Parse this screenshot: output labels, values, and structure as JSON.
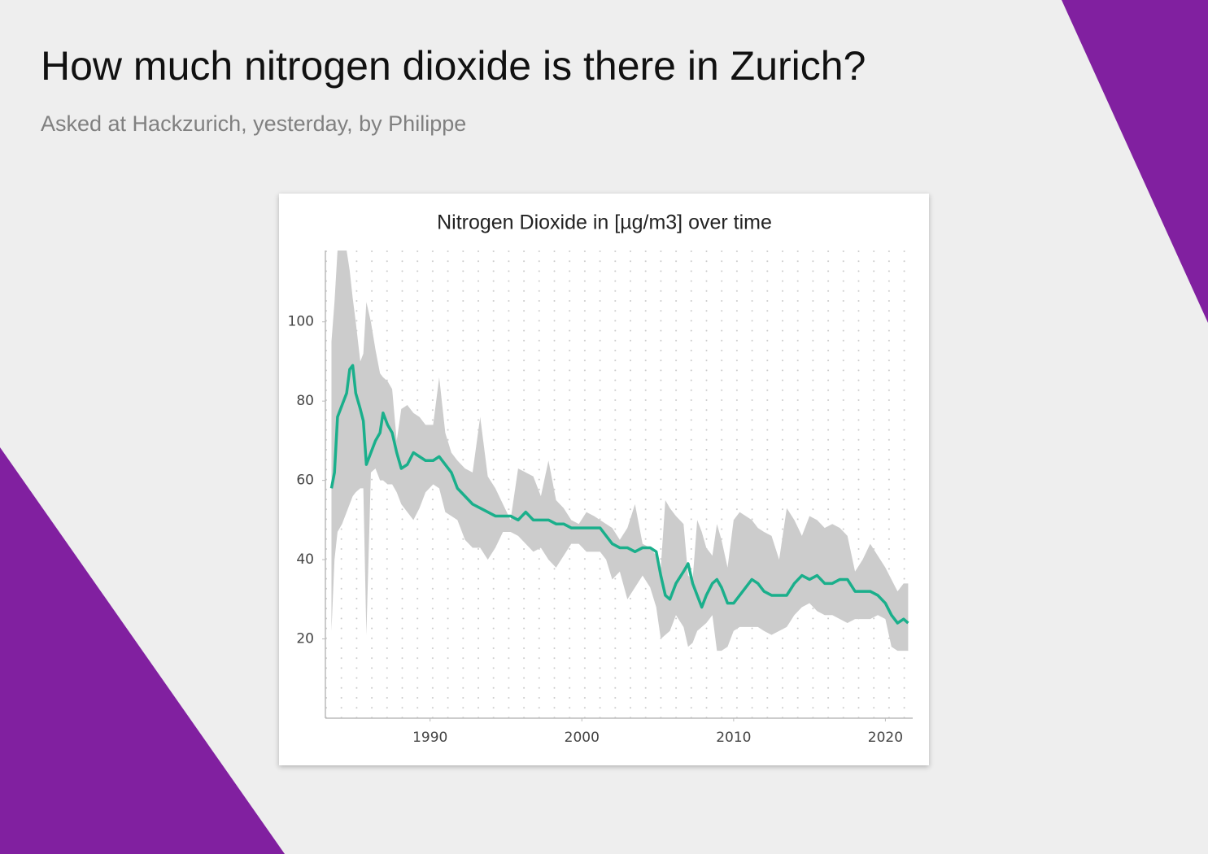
{
  "header": {
    "title": "How much nitrogen dioxide is there in Zurich?",
    "subtitle": "Asked at Hackzurich, yesterday, by Philippe"
  },
  "chart_data": {
    "type": "line-band",
    "title": "Nitrogen Dioxide in [µg/m3] over time",
    "x": [
      1983.5,
      1983.7,
      1983.9,
      1984.2,
      1984.5,
      1984.7,
      1984.9,
      1985.1,
      1985.4,
      1985.6,
      1985.8,
      1986.1,
      1986.4,
      1986.7,
      1986.9,
      1987.2,
      1987.5,
      1987.8,
      1988.1,
      1988.5,
      1988.9,
      1989.3,
      1989.7,
      1990.2,
      1990.6,
      1991.0,
      1991.4,
      1991.8,
      1992.3,
      1992.8,
      1993.3,
      1993.8,
      1994.3,
      1994.8,
      1995.3,
      1995.8,
      1996.3,
      1996.8,
      1997.3,
      1997.8,
      1998.3,
      1998.8,
      1999.3,
      1999.8,
      2000.3,
      2000.8,
      2001.2,
      2001.6,
      2002.0,
      2002.5,
      2003.0,
      2003.5,
      2004.0,
      2004.5,
      2004.9,
      2005.2,
      2005.5,
      2005.8,
      2006.2,
      2006.7,
      2007.0,
      2007.3,
      2007.6,
      2007.9,
      2008.2,
      2008.6,
      2008.9,
      2009.2,
      2009.6,
      2010.0,
      2010.4,
      2010.8,
      2011.2,
      2011.6,
      2012.0,
      2012.5,
      2013.0,
      2013.5,
      2014.0,
      2014.5,
      2015.0,
      2015.5,
      2016.0,
      2016.5,
      2017.0,
      2017.5,
      2018.0,
      2018.5,
      2019.0,
      2019.5,
      2020.0,
      2020.4,
      2020.8,
      2021.2,
      2021.5
    ],
    "line": {
      "color": "#1aaf8b",
      "values": [
        58,
        62,
        76,
        79,
        82,
        88,
        89,
        82,
        78,
        75,
        64,
        67,
        70,
        72,
        77,
        74,
        72,
        67,
        63,
        64,
        67,
        66,
        65,
        65,
        66,
        64,
        62,
        58,
        56,
        54,
        53,
        52,
        51,
        51,
        51,
        50,
        52,
        50,
        50,
        50,
        49,
        49,
        48,
        48,
        48,
        48,
        48,
        46,
        44,
        43,
        43,
        42,
        43,
        43,
        42,
        36,
        31,
        30,
        34,
        37,
        39,
        34,
        31,
        28,
        31,
        34,
        35,
        33,
        29,
        29,
        31,
        33,
        35,
        34,
        32,
        31,
        31,
        31,
        34,
        36,
        35,
        36,
        34,
        34,
        35,
        35,
        32,
        32,
        32,
        31,
        29,
        26,
        24,
        25,
        24
      ]
    },
    "band": {
      "color": "#cccccc",
      "upper": [
        95,
        105,
        118,
        118,
        118,
        113,
        106,
        100,
        90,
        92,
        105,
        100,
        93,
        87,
        86,
        85,
        83,
        70,
        78,
        79,
        77,
        76,
        74,
        74,
        86,
        72,
        67,
        65,
        63,
        62,
        76,
        61,
        58,
        54,
        50,
        63,
        62,
        61,
        56,
        65,
        55,
        53,
        50,
        49,
        52,
        51,
        50,
        49,
        48,
        45,
        48,
        54,
        44,
        43,
        41,
        38,
        55,
        53,
        51,
        49,
        36,
        35,
        50,
        47,
        43,
        41,
        49,
        45,
        38,
        50,
        52,
        51,
        50,
        48,
        47,
        46,
        40,
        53,
        50,
        46,
        51,
        50,
        48,
        49,
        48,
        46,
        37,
        40,
        44,
        41,
        38,
        35,
        32,
        34,
        34
      ],
      "lower": [
        22,
        40,
        47,
        49,
        52,
        54,
        56,
        57,
        58,
        58,
        21,
        62,
        63,
        60,
        60,
        59,
        59,
        57,
        54,
        52,
        50,
        53,
        57,
        59,
        58,
        52,
        51,
        50,
        45,
        43,
        43,
        40,
        43,
        47,
        47,
        46,
        44,
        42,
        43,
        40,
        38,
        41,
        44,
        44,
        42,
        42,
        42,
        40,
        35,
        37,
        30,
        33,
        36,
        33,
        28,
        20,
        21,
        22,
        26,
        23,
        18,
        19,
        22,
        23,
        24,
        26,
        17,
        17,
        18,
        22,
        23,
        23,
        23,
        23,
        22,
        21,
        22,
        23,
        26,
        28,
        29,
        27,
        26,
        26,
        25,
        24,
        25,
        25,
        25,
        26,
        25,
        18,
        17,
        17,
        17
      ]
    },
    "xlim": [
      1983.1,
      2021.8
    ],
    "ylim": [
      0,
      118
    ],
    "xticks": [
      1990,
      2000,
      2010,
      2020
    ],
    "yticks": [
      20,
      40,
      60,
      80,
      100
    ]
  }
}
